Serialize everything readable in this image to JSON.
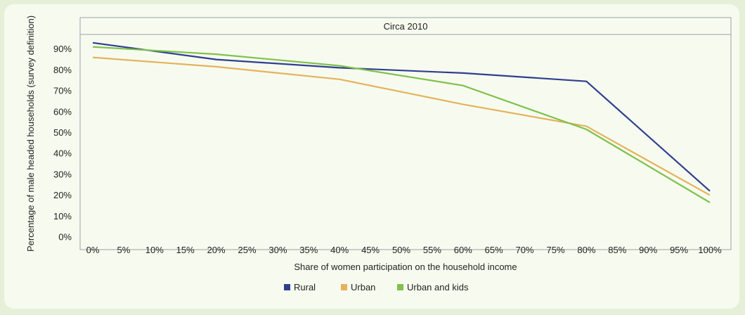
{
  "chart_data": {
    "type": "line",
    "title": "Circa 2010",
    "xlabel": "Share of women participation on the household income",
    "ylabel": "Percentage of male headed households (survey definition)",
    "x_ticks": [
      "0%",
      "5%",
      "10%",
      "15%",
      "20%",
      "25%",
      "30%",
      "35%",
      "40%",
      "45%",
      "50%",
      "55%",
      "60%",
      "65%",
      "70%",
      "75%",
      "80%",
      "85%",
      "90%",
      "95%",
      "100%"
    ],
    "y_ticks": [
      "0%",
      "10%",
      "20%",
      "30%",
      "40%",
      "50%",
      "60%",
      "70%",
      "80%",
      "90%"
    ],
    "xlim": [
      0,
      100
    ],
    "ylim": [
      0,
      100
    ],
    "legend_position": "bottom",
    "series": [
      {
        "name": "Rural",
        "color": "#2e3f8f",
        "x": [
          0,
          20,
          40,
          60,
          80,
          100
        ],
        "y": [
          93,
          85,
          81,
          78.5,
          74.5,
          22
        ]
      },
      {
        "name": "Urban",
        "color": "#e5b25d",
        "x": [
          0,
          20,
          40,
          60,
          80,
          100
        ],
        "y": [
          86,
          81.5,
          75.5,
          63.5,
          53,
          20
        ]
      },
      {
        "name": "Urban and kids",
        "color": "#7fc14d",
        "x": [
          0,
          20,
          40,
          60,
          80,
          100
        ],
        "y": [
          91,
          87.5,
          82,
          72.5,
          51.5,
          16.5
        ]
      }
    ]
  }
}
